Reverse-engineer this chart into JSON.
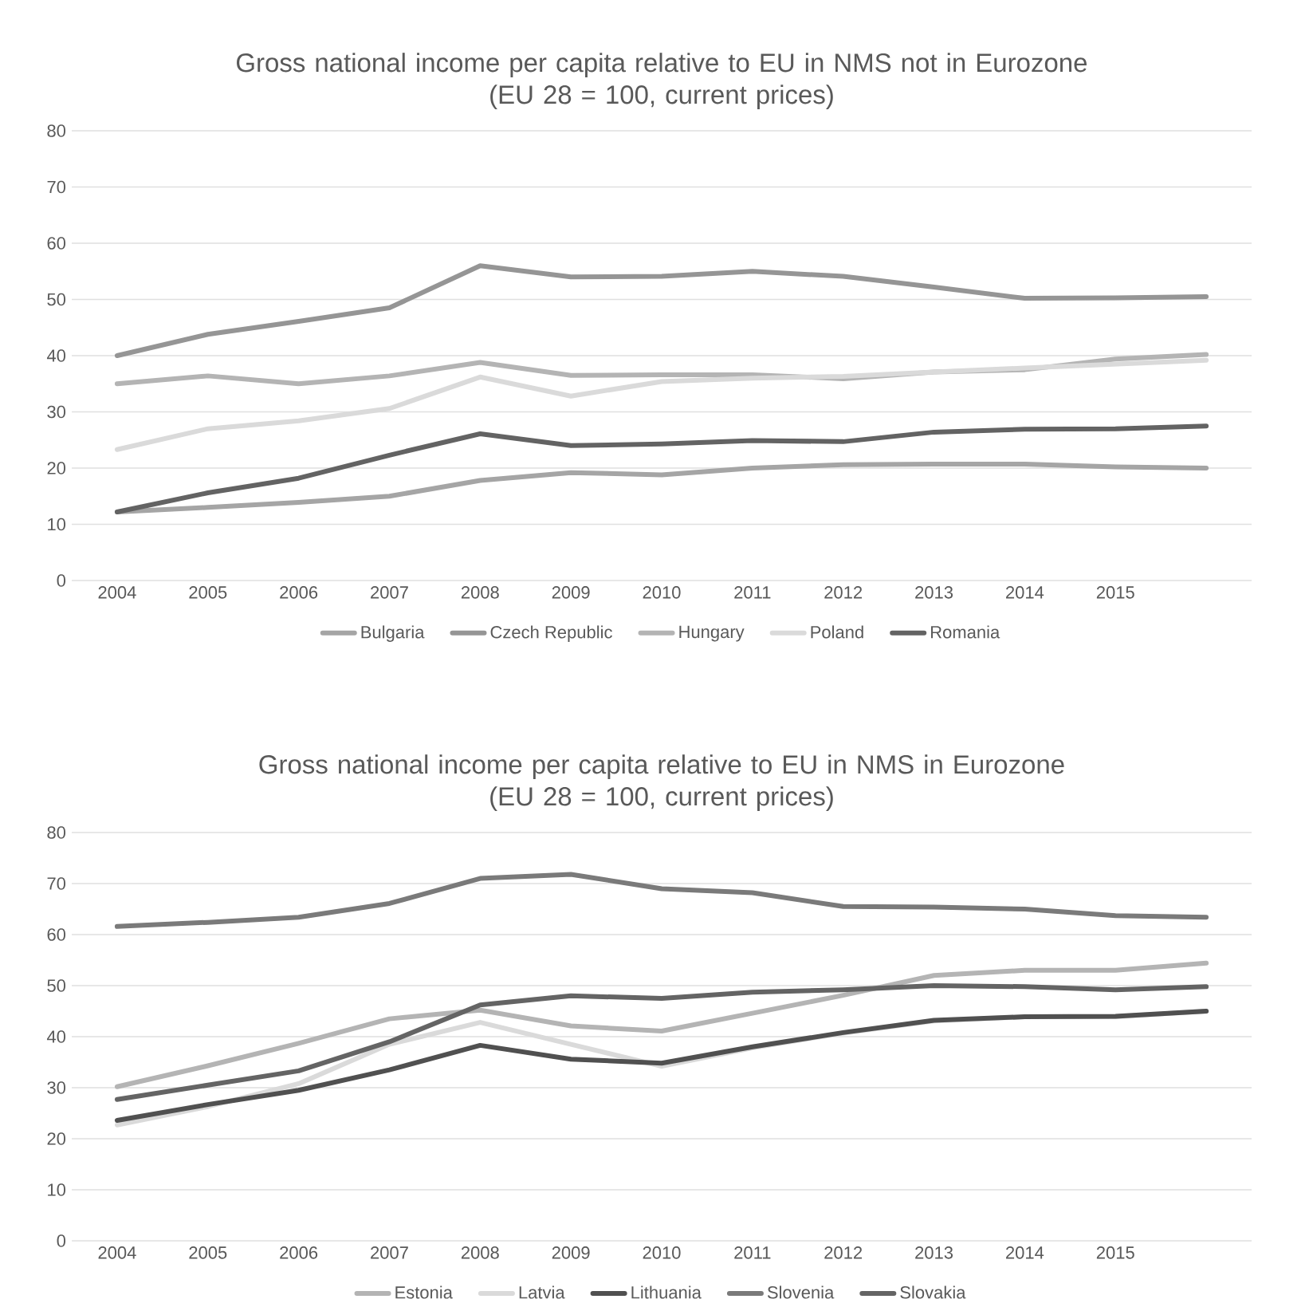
{
  "chart_data": [
    {
      "type": "line",
      "title": "Gross national income per capita relative to EU in NMS not in Eurozone",
      "subtitle": "(EU 28 = 100, current prices)",
      "categories": [
        "2004",
        "2005",
        "2006",
        "2007",
        "2008",
        "2009",
        "2010",
        "2011",
        "2012",
        "2013",
        "2014",
        "2015",
        null
      ],
      "series": [
        {
          "name": "Bulgaria",
          "color": "#a5a5a5",
          "values": [
            12.2,
            13,
            13.9,
            15,
            17.8,
            19.2,
            18.8,
            20,
            20.6,
            20.7,
            20.7,
            20.2,
            20
          ]
        },
        {
          "name": "Czech Republic",
          "color": "#959595",
          "values": [
            40,
            43.8,
            46.1,
            48.5,
            56,
            54,
            54.1,
            55,
            54.1,
            52.2,
            50.2,
            50.3,
            50.5
          ]
        },
        {
          "name": "Hungary",
          "color": "#b4b4b4",
          "values": [
            35,
            36.4,
            35,
            36.4,
            38.8,
            36.5,
            36.6,
            36.6,
            35.9,
            37.1,
            37.5,
            39.4,
            40.2
          ]
        },
        {
          "name": "Poland",
          "color": "#dadada",
          "values": [
            23.3,
            27,
            28.4,
            30.6,
            36.2,
            32.8,
            35.4,
            36,
            36.3,
            37.1,
            37.8,
            38.5,
            39.2
          ]
        },
        {
          "name": "Romania",
          "color": "#636363",
          "values": [
            12.2,
            15.6,
            18.2,
            22.3,
            26.1,
            24,
            24.3,
            24.9,
            24.7,
            26.4,
            26.9,
            27,
            27.5
          ]
        }
      ],
      "ylim": [
        0,
        80
      ],
      "yticks": [
        0,
        10,
        20,
        30,
        40,
        50,
        60,
        70,
        80
      ],
      "grid": "y",
      "legend": "bottom",
      "marker": "none",
      "line_style": "solid"
    },
    {
      "type": "line",
      "title": "Gross national income per capita relative to EU in NMS in Eurozone",
      "subtitle": "(EU 28 = 100, current prices)",
      "categories": [
        "2004",
        "2005",
        "2006",
        "2007",
        "2008",
        "2009",
        "2010",
        "2011",
        "2012",
        "2013",
        "2014",
        "2015",
        null
      ],
      "series": [
        {
          "name": "Estonia",
          "color": "#b4b4b4",
          "values": [
            30.2,
            34.3,
            38.7,
            43.5,
            45.2,
            42.1,
            41.1,
            44.6,
            48.1,
            52,
            53,
            53,
            54.4
          ]
        },
        {
          "name": "Latvia",
          "color": "#dadada",
          "values": [
            22.7,
            26.3,
            30.8,
            38.5,
            42.8,
            38.5,
            34.2,
            37.8,
            40.7,
            43.1,
            43.9,
            43.9,
            45
          ]
        },
        {
          "name": "Lithuania",
          "color": "#505050",
          "values": [
            23.6,
            26.7,
            29.5,
            33.5,
            38.3,
            35.6,
            34.8,
            38,
            40.8,
            43.2,
            43.9,
            44,
            45
          ]
        },
        {
          "name": "Slovenia",
          "color": "#7a7a7a",
          "values": [
            61.6,
            62.4,
            63.4,
            66.1,
            71,
            71.8,
            69,
            68.2,
            65.5,
            65.4,
            65,
            63.7,
            63.4
          ]
        },
        {
          "name": "Slovakia",
          "color": "#646464",
          "values": [
            27.7,
            30.5,
            33.3,
            39,
            46.2,
            48,
            47.5,
            48.7,
            49.2,
            50,
            49.8,
            49.2,
            49.8
          ]
        }
      ],
      "ylim": [
        0,
        80
      ],
      "yticks": [
        0,
        10,
        20,
        30,
        40,
        50,
        60,
        70,
        80
      ],
      "grid": "y",
      "legend": "bottom",
      "marker": "none",
      "line_style": "solid"
    }
  ]
}
